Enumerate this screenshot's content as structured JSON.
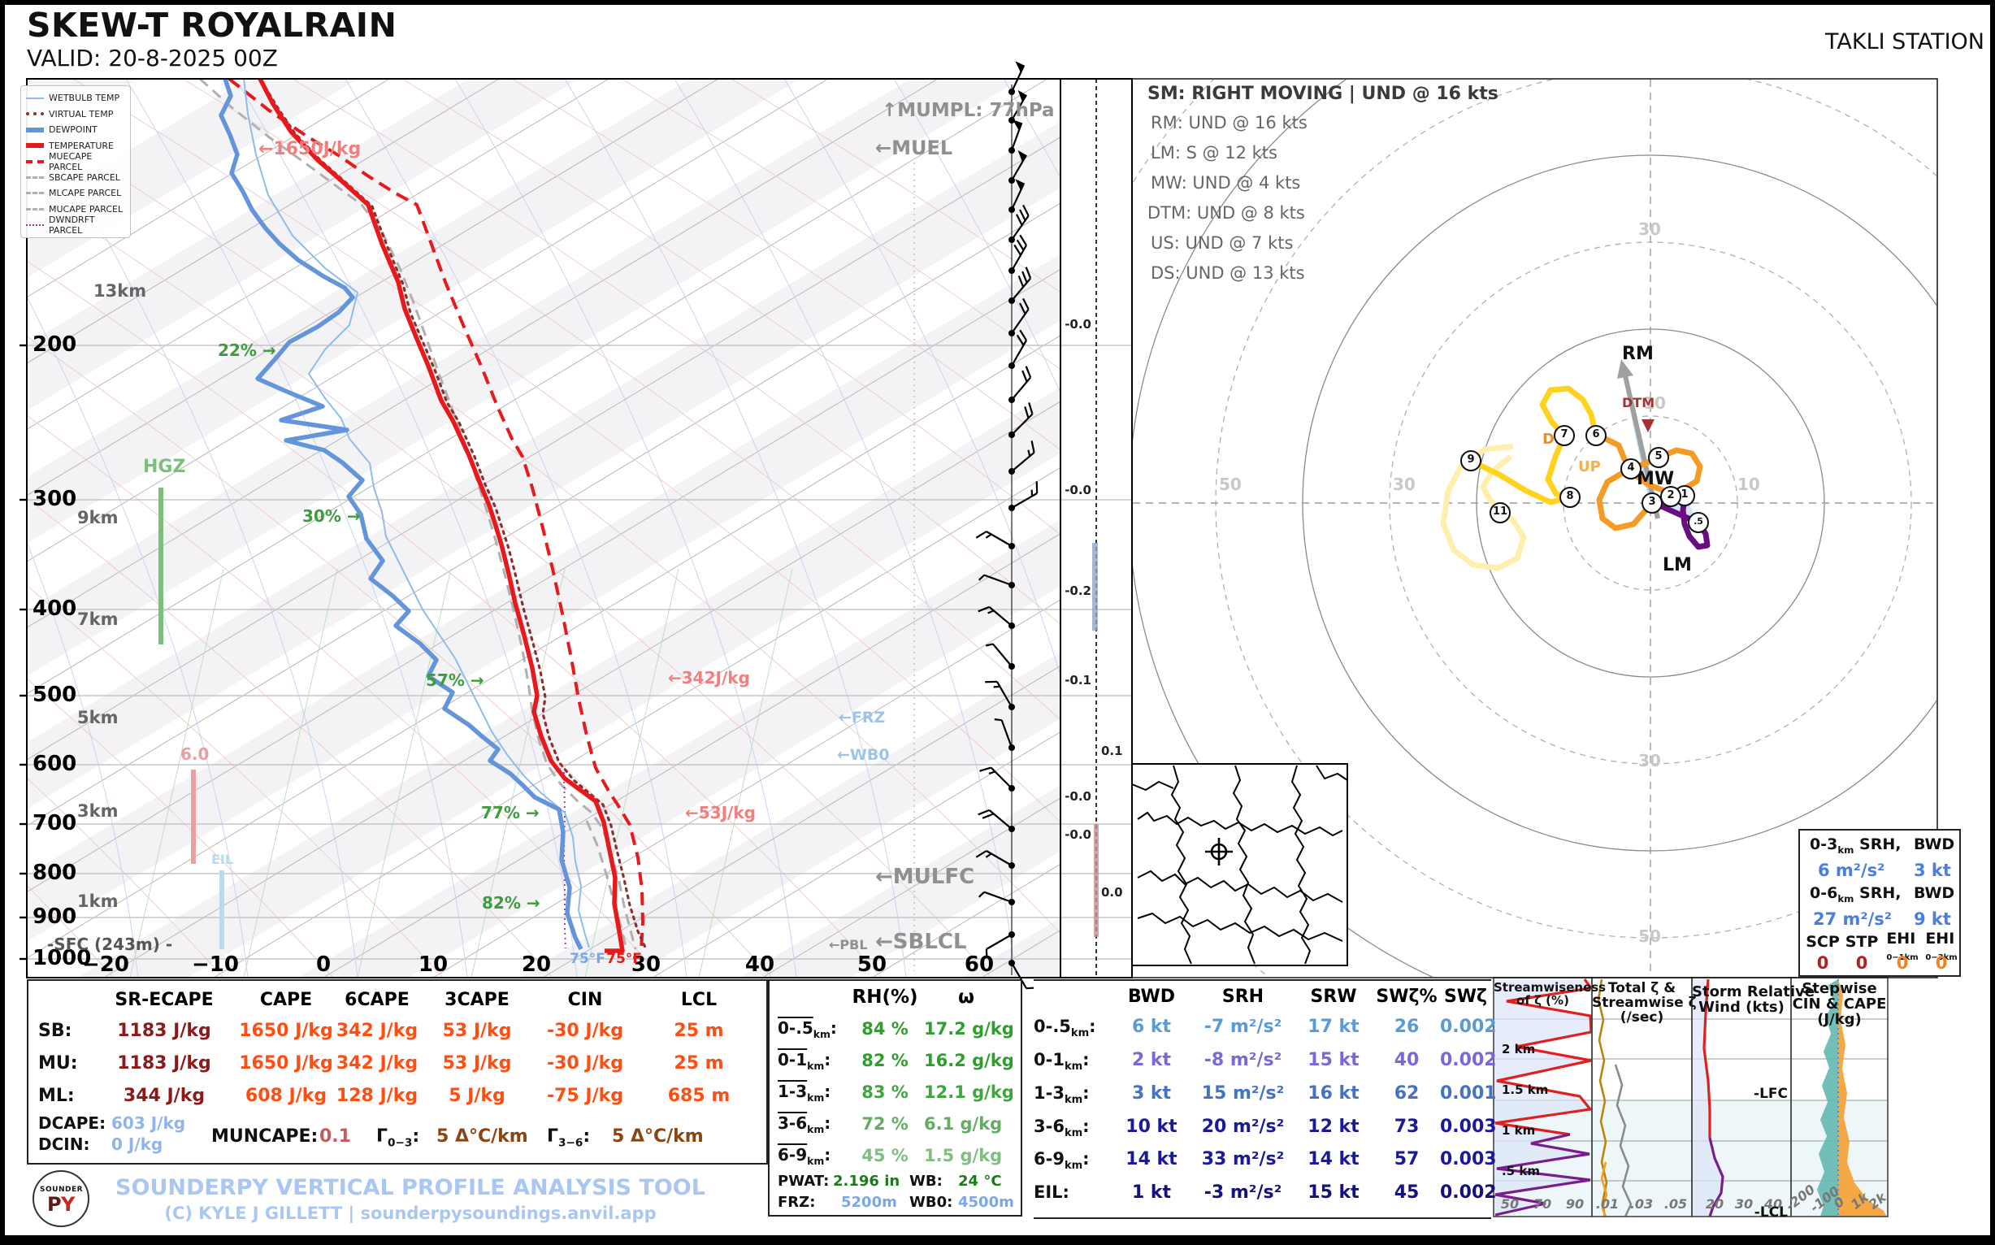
{
  "header": {
    "title": "SKEW-T ROYALRAIN",
    "valid": "VALID: 20-8-2025 00Z",
    "station": "TAKLI STATION"
  },
  "legend": {
    "items": [
      "WETBULB TEMP",
      "VIRTUAL TEMP",
      "DEWPOINT",
      "TEMPERATURE",
      "MUECAPE PARCEL",
      "SBCAPE PARCEL",
      "MLCAPE PARCEL",
      "MUCAPE PARCEL",
      "DWNDRFT PARCEL"
    ]
  },
  "common": {
    "colon": ":",
    "km": "km"
  },
  "skewt": {
    "pressures": [
      "200",
      "300",
      "400",
      "500",
      "600",
      "700",
      "800",
      "900",
      "1000"
    ],
    "heights": [
      "13km",
      "9km",
      "7km",
      "5km",
      "3km",
      "1km"
    ],
    "surface": "-SFC (243m) -",
    "temps": [
      "−20",
      "−10",
      "0",
      "10",
      "20",
      "30",
      "40",
      "50",
      "60"
    ],
    "ann": {
      "mumpl": "↑MUMPL: 77hPa",
      "muel": "←MUEL",
      "mulfc": "←MULFC",
      "sblcl": "←SBLCL",
      "pbl": "←PBL",
      "frz": "←FRZ",
      "wb0": "←WB0",
      "hgz": "HGZ",
      "eil": "EIL",
      "lapse6": "6.0",
      "cape_upper": "←1650J/kg",
      "cape_mid": "←342J/kg",
      "cape_low": "←53J/kg",
      "rh": [
        "22% →",
        "30% →",
        "57% →",
        "77% →",
        "82% →"
      ],
      "sfc_dew_f": "75°F",
      "sfc_temp_f": "75°F"
    }
  },
  "omega": {
    "values": [
      "-0.0",
      "-0.0",
      "-0.2",
      "-0.1",
      "0.1",
      "-0.0",
      "-0.0",
      "0.0"
    ]
  },
  "hodograph": {
    "sm_lines": [
      "SM: RIGHT MOVING | UND @ 16 kts",
      "RM: UND @ 16 kts",
      "LM: S @ 12 kts",
      "MW: UND @ 4 kts",
      "DTM: UND @ 8 kts",
      "US: UND @ 7 kts",
      "DS: UND @ 13 kts"
    ],
    "ring_labels": [
      "30",
      "10",
      "10",
      "30",
      "50",
      "30",
      "50"
    ],
    "markers": [
      ".5",
      "1",
      "2",
      "3",
      "4",
      "5",
      "6",
      "7",
      "8",
      "9",
      "11"
    ],
    "labels": {
      "rm": "RM",
      "mw": "MW",
      "lm": "LM",
      "dtm": "DTM",
      "up": "UP",
      "dn": "DN"
    }
  },
  "srh_box": {
    "row1": {
      "b": "0-3",
      "s": "km",
      "t": " SRH,",
      "r": "BWD"
    },
    "row1v": {
      "srh": "6 m²/s²",
      "bwd": "3 kt"
    },
    "row2": {
      "b": "0-6",
      "s": "km",
      "t": " SRH,",
      "r": "BWD"
    },
    "row2v": {
      "srh": "27 m²/s²",
      "bwd": "9 kt"
    },
    "idx_headers": [
      {
        "h": "SCP",
        "s": ""
      },
      {
        "h": "STP",
        "s": ""
      },
      {
        "h": "EHI",
        "s": "0−1km"
      },
      {
        "h": "EHI",
        "s": "0−3km"
      }
    ],
    "idx_values": [
      "0",
      "0",
      "0",
      "0"
    ]
  },
  "thermo": {
    "headers": [
      "SR-ECAPE",
      "CAPE",
      "6CAPE",
      "3CAPE",
      "CIN",
      "LCL"
    ],
    "rows": [
      {
        "label": "SB:",
        "v": [
          "1183 J/kg",
          "1650 J/kg",
          "342 J/kg",
          "53 J/kg",
          "-30 J/kg",
          "25 m"
        ]
      },
      {
        "label": "MU:",
        "v": [
          "1183 J/kg",
          "1650 J/kg",
          "342 J/kg",
          "53 J/kg",
          "-30 J/kg",
          "25 m"
        ]
      },
      {
        "label": "ML:",
        "v": [
          "344 J/kg",
          "608 J/kg",
          "128 J/kg",
          "5 J/kg",
          "-75 J/kg",
          "685 m"
        ]
      }
    ],
    "dcape_label": "DCAPE:",
    "dcape": "603 J/kg",
    "dcin_label": "DCIN:",
    "dcin": "0 J/kg",
    "muncape_label": "MUNCAPE:",
    "muncape": "0.1",
    "lr03": {
      "b": "Γ",
      "s": "0−3",
      "c": ":"
    },
    "lr03_v": "5 Δ°C/km",
    "lr36": {
      "b": "Γ",
      "s": "3−6",
      "c": ":"
    },
    "lr36_v": "5 Δ°C/km"
  },
  "moisture": {
    "h_rh": "RH(%)",
    "h_w": "ω",
    "rows": [
      {
        "b": "0-.5",
        "s": "km",
        "c": ":",
        "rh": "84 %",
        "w": "17.2 g/kg"
      },
      {
        "b": "0-1",
        "s": "km",
        "c": ":",
        "rh": "82 %",
        "w": "16.2 g/kg"
      },
      {
        "b": "1-3",
        "s": "km",
        "c": ":",
        "rh": "83 %",
        "w": "12.1 g/kg"
      },
      {
        "b": "3-6",
        "s": "km",
        "c": ":",
        "rh": "72 %",
        "w": "6.1 g/kg"
      },
      {
        "b": "6-9",
        "s": "km",
        "c": ":",
        "rh": "45 %",
        "w": "1.5 g/kg"
      }
    ],
    "pwat_label": "PWAT:",
    "pwat": "2.196 in",
    "wb_label": "WB:",
    "wb": "24 °C",
    "frz_label": "FRZ:",
    "frz": "5200m",
    "wb0_label": "WB0:",
    "wb0": "4500m"
  },
  "kinematics": {
    "headers": [
      "BWD",
      "SRH",
      "SRW",
      "SWζ%",
      "SWζ"
    ],
    "rows": [
      {
        "b": "0-.5",
        "s": "km",
        "c": ":",
        "v": [
          "6 kt",
          "-7 m²/s²",
          "17 kt",
          "26",
          "0.002"
        ]
      },
      {
        "b": "0-1",
        "s": "km",
        "c": ":",
        "v": [
          "2 kt",
          "-8 m²/s²",
          "15 kt",
          "40",
          "0.002"
        ]
      },
      {
        "b": "1-3",
        "s": "km",
        "c": ":",
        "v": [
          "3 kt",
          "15 m²/s²",
          "16 kt",
          "62",
          "0.001"
        ]
      },
      {
        "b": "3-6",
        "s": "km",
        "c": ":",
        "v": [
          "10 kt",
          "20 m²/s²",
          "12 kt",
          "73",
          "0.003"
        ]
      },
      {
        "b": "6-9",
        "s": "km",
        "c": ":",
        "v": [
          "14 kt",
          "33 m²/s²",
          "14 kt",
          "57",
          "0.003"
        ]
      },
      {
        "b": "EIL",
        "s": "",
        "c": ":",
        "v": [
          "1 kt",
          "-3 m²/s²",
          "15 kt",
          "45",
          "0.002"
        ]
      }
    ]
  },
  "panels": {
    "p1": {
      "t1": "Streamwiseness",
      "t2": "of ζ (%)",
      "ticks": [
        "50",
        "70",
        "90"
      ],
      "heights": [
        "2 km",
        "1.5 km",
        "1 km",
        ".5 km"
      ]
    },
    "p2": {
      "t1": "Total ζ &",
      "t2": "Streamwise ζ",
      "t3": "(/sec)",
      "ticks": [
        ".01",
        ".03",
        ".05"
      ]
    },
    "p3": {
      "t1": "Storm Relative",
      "t2": "Wind (kts)",
      "ticks": [
        "20",
        "30",
        "40"
      ],
      "lfc": "-LFC",
      "lcl": "-LCL"
    },
    "p4": {
      "t1": "Stepwise",
      "t2": "CIN & CAPE",
      "t3": "(J/kg)",
      "ticks": [
        "-200",
        "-100",
        "0",
        "1k",
        "2k"
      ]
    }
  },
  "footer": {
    "line1": "SOUNDERPY VERTICAL PROFILE ANALYSIS TOOL",
    "line2": "(C) KYLE J GILLETT | sounderpysoundings.anvil.app",
    "logo_top": "SOUNDER",
    "logo_p": "P",
    "logo_y": "Y"
  },
  "colors": {
    "temperature": "#e8191c",
    "dewpoint": "#6495db",
    "wetbulb": "#8fbce8",
    "virtual_temp": "#8b3030",
    "parcel_gray": "#b0b0b0",
    "dwndrft": "#993399",
    "green_rh": "#3f9b3f",
    "credit_blue": "#a9c7f2",
    "hodo_purple": "#6a0d83",
    "hodo_orange": "#f59a23",
    "hodo_gold": "#ffd21f",
    "hodo_pale": "#ffefad"
  },
  "chart_data": {
    "type": "skewt-sounding-with-hodograph",
    "title": "SKEW-T ROYALRAIN",
    "valid": "20-8-2025 00Z",
    "station": "TAKLI STATION",
    "skewt_axes": {
      "pressure_hPa": [
        200,
        300,
        400,
        500,
        600,
        700,
        800,
        900,
        1000
      ],
      "temp_C": [
        -20,
        -10,
        0,
        10,
        20,
        30,
        40,
        50,
        60
      ]
    },
    "surface": {
      "temp_F": 75,
      "dewpoint_F": 75,
      "elevation_m": 243
    },
    "levels": {
      "mumpl_hPa": 77,
      "frz_m": 5200,
      "wb0_m": 4500
    },
    "thermodynamics": {
      "rows": [
        "SB",
        "MU",
        "ML"
      ],
      "SR_ECAPE_Jkg": [
        1183,
        1183,
        344
      ],
      "CAPE_Jkg": [
        1650,
        1650,
        608
      ],
      "CAPE6_Jkg": [
        342,
        342,
        128
      ],
      "CAPE3_Jkg": [
        53,
        53,
        5
      ],
      "CIN_Jkg": [
        -30,
        -30,
        -75
      ],
      "LCL_m": [
        25,
        25,
        685
      ],
      "DCAPE_Jkg": 603,
      "DCIN_Jkg": 0,
      "MUNCAPE": 0.1,
      "lapse_0_3_Ckm": 5,
      "lapse_3_6_Ckm": 5
    },
    "moisture": {
      "layers": [
        "0-.5km",
        "0-1km",
        "1-3km",
        "3-6km",
        "6-9km"
      ],
      "RH_pct": [
        84,
        82,
        83,
        72,
        45
      ],
      "w_gkg": [
        17.2,
        16.2,
        12.1,
        6.1,
        1.5
      ],
      "PWAT_in": 2.196,
      "WB_C": 24,
      "FRZ_m": 5200,
      "WB0_m": 4500
    },
    "kinematics": {
      "layers": [
        "0-.5km",
        "0-1km",
        "1-3km",
        "3-6km",
        "6-9km",
        "EIL"
      ],
      "BWD_kt": [
        6,
        2,
        3,
        10,
        14,
        1
      ],
      "SRH_m2s2": [
        -7,
        -8,
        15,
        20,
        33,
        -3
      ],
      "SRW_kt": [
        17,
        15,
        16,
        12,
        14,
        15
      ],
      "SWpct": [
        26,
        40,
        62,
        73,
        57,
        45
      ],
      "SWzeta": [
        0.002,
        0.002,
        0.001,
        0.003,
        0.003,
        0.002
      ]
    },
    "storm_motion": {
      "SM": "RIGHT MOVING | UND @ 16 kts",
      "RM": "UND @ 16 kts",
      "LM": "S @ 12 kts",
      "MW": "UND @ 4 kts",
      "DTM": "UND @ 8 kts",
      "US": "UND @ 7 kts",
      "DS": "UND @ 13 kts"
    },
    "composite_indices": {
      "SCP": 0,
      "STP": 0,
      "EHI_0_1": 0,
      "EHI_0_3": 0,
      "SRH_0_3_m2s2": 6,
      "BWD_0_3_kt": 3,
      "SRH_0_6_m2s2": 27,
      "BWD_0_6_kt": 9
    },
    "hodograph_points_kt": [
      {
        "km": 0.5,
        "u": 5.5,
        "v": -2.2
      },
      {
        "km": 1,
        "u": 3.9,
        "v": 0.8
      },
      {
        "km": 2,
        "u": 2.3,
        "v": 0.7
      },
      {
        "km": 3,
        "u": 0.2,
        "v": 0.0
      },
      {
        "km": 4,
        "u": -2.2,
        "v": 3.9
      },
      {
        "km": 5,
        "u": 0.9,
        "v": 5.2
      },
      {
        "km": 6,
        "u": -6.3,
        "v": 7.8
      },
      {
        "km": 7,
        "u": -9.9,
        "v": 7.8
      },
      {
        "km": 8,
        "u": -9.3,
        "v": 0.7
      },
      {
        "km": 9,
        "u": -20.7,
        "v": 4.9
      },
      {
        "km": 11,
        "u": -17.3,
        "v": -1.1
      }
    ],
    "omega_labels": [
      "-0.0",
      "-0.0",
      "-0.2",
      "-0.1",
      "0.1",
      "-0.0",
      "-0.0",
      "0.0"
    ]
  }
}
